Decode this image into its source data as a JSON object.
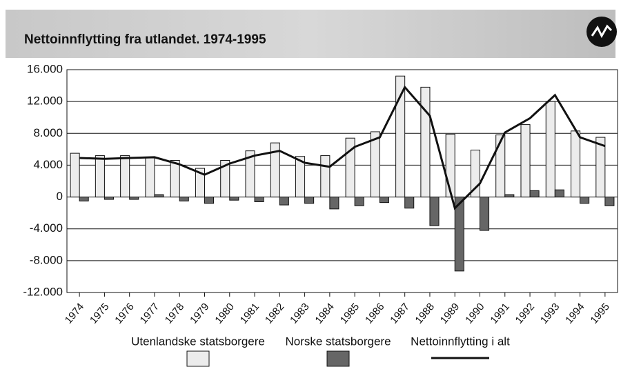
{
  "chart_data": {
    "type": "bar-line",
    "title": "Nettoinnflytting fra utlandet. 1974-1995",
    "categories": [
      "1974",
      "1975",
      "1976",
      "1977",
      "1978",
      "1979",
      "1980",
      "1981",
      "1982",
      "1983",
      "1984",
      "1985",
      "1986",
      "1987",
      "1988",
      "1989",
      "1990",
      "1991",
      "1992",
      "1993",
      "1994",
      "1995"
    ],
    "series": [
      {
        "name": "Utenlandske statsborgere",
        "kind": "bar",
        "color": "#ececec",
        "values": [
          5500,
          5200,
          5200,
          4900,
          4600,
          3600,
          4600,
          5800,
          6800,
          5100,
          5200,
          7400,
          8200,
          15200,
          13800,
          7900,
          5900,
          7800,
          9100,
          12000,
          8300,
          7500
        ]
      },
      {
        "name": "Norske statsborgere",
        "kind": "bar",
        "color": "#666666",
        "values": [
          -500,
          -300,
          -300,
          300,
          -500,
          -800,
          -400,
          -600,
          -1000,
          -800,
          -1500,
          -1100,
          -700,
          -1400,
          -3600,
          -9300,
          -4200,
          300,
          800,
          900,
          -800,
          -1100
        ]
      },
      {
        "name": "Nettoinnflytting i alt",
        "kind": "line",
        "color": "#111111",
        "values": [
          4900,
          4800,
          4900,
          5000,
          4100,
          2800,
          4200,
          5200,
          5800,
          4300,
          3800,
          6300,
          7500,
          13800,
          10200,
          -1400,
          1700,
          8100,
          9900,
          12800,
          7500,
          6400
        ]
      }
    ],
    "ylim": [
      -12000,
      16000
    ],
    "yticks": [
      {
        "value": -12000,
        "label": "-12.000"
      },
      {
        "value": -8000,
        "label": "-8.000"
      },
      {
        "value": -4000,
        "label": "-4.000"
      },
      0,
      {
        "value": 4000,
        "label": "4.000"
      },
      {
        "value": 8000,
        "label": "8.000"
      },
      {
        "value": 12000,
        "label": "12.000"
      },
      {
        "value": 16000,
        "label": "16.000"
      }
    ],
    "grid": true
  }
}
